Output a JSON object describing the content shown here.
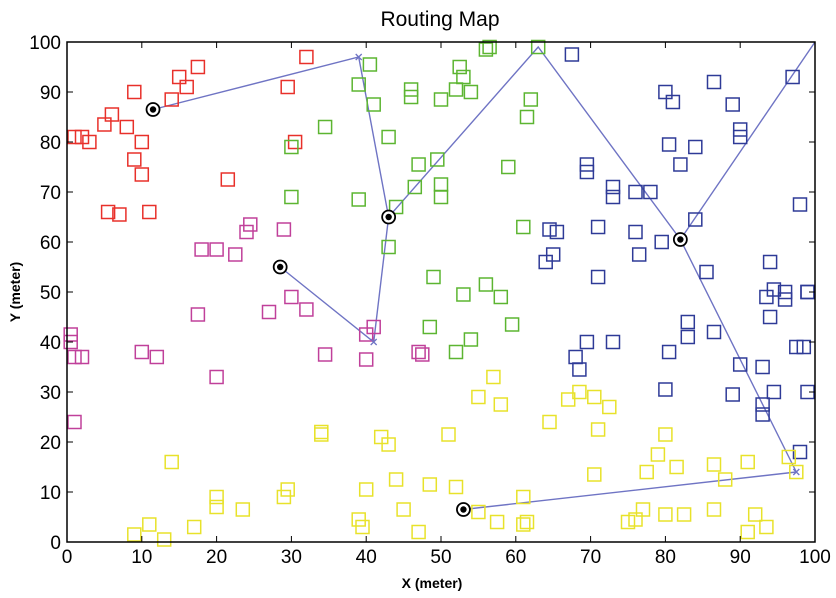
{
  "chart_data": {
    "type": "scatter",
    "title": "Routing Map",
    "xlabel": "X (meter)",
    "ylabel": "Y (meter)",
    "xlim": [
      0,
      100
    ],
    "ylim": [
      0,
      100
    ],
    "grid": false,
    "x_ticks": [
      "0",
      "10",
      "20",
      "30",
      "40",
      "50",
      "60",
      "70",
      "80",
      "90",
      "100"
    ],
    "y_ticks": [
      "0",
      "10",
      "20",
      "30",
      "40",
      "50",
      "60",
      "70",
      "80",
      "90",
      "100"
    ],
    "colors": {
      "red": "#e8302a",
      "green": "#5cb531",
      "blue": "#2e3a97",
      "magenta": "#c0409a",
      "yellow": "#e8e22a",
      "route": "#6f74c4"
    },
    "series": [
      {
        "color_key": "red",
        "points": [
          [
            1,
            81
          ],
          [
            2,
            81
          ],
          [
            3,
            80
          ],
          [
            5,
            83.5
          ],
          [
            6,
            85.5
          ],
          [
            8,
            83
          ],
          [
            9,
            90
          ],
          [
            9,
            76.5
          ],
          [
            10,
            80
          ],
          [
            10,
            73.5
          ],
          [
            14,
            88.5
          ],
          [
            15,
            93
          ],
          [
            16,
            91
          ],
          [
            17.5,
            95
          ],
          [
            5.5,
            66
          ],
          [
            7,
            65.5
          ],
          [
            11,
            66
          ],
          [
            21.5,
            72.5
          ],
          [
            29.5,
            91
          ],
          [
            30.5,
            80
          ],
          [
            32,
            97
          ]
        ]
      },
      {
        "color_key": "green",
        "points": [
          [
            30,
            79
          ],
          [
            30,
            69
          ],
          [
            34.5,
            83
          ],
          [
            39,
            91.5
          ],
          [
            39,
            68.5
          ],
          [
            40.5,
            95.5
          ],
          [
            41,
            87.5
          ],
          [
            43,
            81
          ],
          [
            43,
            59
          ],
          [
            44,
            67
          ],
          [
            46,
            89
          ],
          [
            46,
            90.5
          ],
          [
            47,
            75.5
          ],
          [
            46.5,
            71
          ],
          [
            49.5,
            76.5
          ],
          [
            50,
            71.5
          ],
          [
            50,
            69
          ],
          [
            50,
            88.5
          ],
          [
            52,
            90.5
          ],
          [
            52.5,
            95
          ],
          [
            53,
            93
          ],
          [
            54,
            90
          ],
          [
            56,
            98.5
          ],
          [
            56.5,
            99
          ],
          [
            59,
            75
          ],
          [
            61.5,
            85
          ],
          [
            62,
            88.5
          ],
          [
            61,
            63
          ],
          [
            63,
            99
          ],
          [
            49,
            53
          ],
          [
            48.5,
            43
          ],
          [
            52,
            38
          ],
          [
            53,
            49.5
          ],
          [
            54,
            40.5
          ],
          [
            56,
            51.5
          ],
          [
            58,
            49
          ],
          [
            59.5,
            43.5
          ]
        ]
      },
      {
        "color_key": "blue",
        "points": [
          [
            67.5,
            97.5
          ],
          [
            69.5,
            74
          ],
          [
            69.5,
            75.5
          ],
          [
            73,
            71
          ],
          [
            73,
            69
          ],
          [
            76,
            70
          ],
          [
            78,
            70
          ],
          [
            80,
            90
          ],
          [
            80.5,
            79.5
          ],
          [
            81,
            88
          ],
          [
            82,
            75.5
          ],
          [
            84,
            79
          ],
          [
            84,
            64.5
          ],
          [
            86.5,
            92
          ],
          [
            89,
            87.5
          ],
          [
            90,
            81
          ],
          [
            90,
            82.5
          ],
          [
            97,
            93
          ],
          [
            98,
            67.5
          ],
          [
            64,
            56
          ],
          [
            64.5,
            62.5
          ],
          [
            65.5,
            62
          ],
          [
            65,
            57.5
          ],
          [
            71,
            63
          ],
          [
            71,
            53
          ],
          [
            69.5,
            40
          ],
          [
            68,
            37
          ],
          [
            68.5,
            34.5
          ],
          [
            73,
            40
          ],
          [
            76,
            62
          ],
          [
            76.5,
            57.5
          ],
          [
            79.5,
            60
          ],
          [
            85.5,
            54
          ],
          [
            80,
            30.5
          ],
          [
            80.5,
            38
          ],
          [
            83,
            44
          ],
          [
            83,
            41
          ],
          [
            86.5,
            42
          ],
          [
            89,
            29.5
          ],
          [
            90,
            35.5
          ],
          [
            93,
            35
          ],
          [
            93,
            27.5
          ],
          [
            93,
            25.5
          ],
          [
            94,
            56
          ],
          [
            93.5,
            49
          ],
          [
            94.5,
            50.5
          ],
          [
            94,
            45
          ],
          [
            94.5,
            30
          ],
          [
            96,
            50
          ],
          [
            96,
            48.5
          ],
          [
            97.5,
            39
          ],
          [
            98,
            18
          ],
          [
            98.5,
            39
          ],
          [
            99,
            50
          ],
          [
            99,
            50
          ],
          [
            99,
            30
          ]
        ]
      },
      {
        "color_key": "magenta",
        "points": [
          [
            0.5,
            40
          ],
          [
            0.5,
            41.5
          ],
          [
            1,
            24
          ],
          [
            1,
            37
          ],
          [
            2,
            37
          ],
          [
            10,
            38
          ],
          [
            12,
            37
          ],
          [
            17.5,
            45.5
          ],
          [
            18,
            58.5
          ],
          [
            20,
            58.5
          ],
          [
            20,
            33
          ],
          [
            22.5,
            57.5
          ],
          [
            24,
            62
          ],
          [
            24.5,
            63.5
          ],
          [
            27,
            46
          ],
          [
            29,
            62.5
          ],
          [
            30,
            49
          ],
          [
            32,
            46.5
          ],
          [
            34.5,
            37.5
          ],
          [
            40,
            41.5
          ],
          [
            40,
            36.5
          ],
          [
            41,
            43
          ],
          [
            47,
            38
          ],
          [
            47.5,
            37.5
          ]
        ]
      },
      {
        "color_key": "yellow",
        "points": [
          [
            9,
            1.5
          ],
          [
            11,
            3.5
          ],
          [
            13,
            0.5
          ],
          [
            14,
            16
          ],
          [
            17,
            3
          ],
          [
            20,
            7
          ],
          [
            20,
            9
          ],
          [
            23.5,
            6.5
          ],
          [
            29,
            9
          ],
          [
            29.5,
            10.5
          ],
          [
            34,
            22
          ],
          [
            34,
            21.5
          ],
          [
            39,
            4.5
          ],
          [
            39.5,
            3
          ],
          [
            40,
            10.5
          ],
          [
            42,
            21
          ],
          [
            43,
            19.5
          ],
          [
            44,
            12.5
          ],
          [
            45,
            6.5
          ],
          [
            47,
            2
          ],
          [
            48.5,
            11.5
          ],
          [
            51,
            21.5
          ],
          [
            52,
            11
          ],
          [
            55,
            6
          ],
          [
            55,
            29
          ],
          [
            57,
            33
          ],
          [
            57.5,
            4
          ],
          [
            58,
            27.5
          ],
          [
            61,
            9
          ],
          [
            61,
            3.5
          ],
          [
            61.5,
            4
          ],
          [
            64.5,
            24
          ],
          [
            67,
            28.5
          ],
          [
            68.5,
            30
          ],
          [
            70.5,
            29
          ],
          [
            70.5,
            13.5
          ],
          [
            71,
            22.5
          ],
          [
            72.5,
            27
          ],
          [
            75,
            4
          ],
          [
            76,
            4.5
          ],
          [
            77,
            6.5
          ],
          [
            77.5,
            14
          ],
          [
            79,
            17.5
          ],
          [
            80,
            5.5
          ],
          [
            80,
            21.5
          ],
          [
            81.5,
            15
          ],
          [
            82.5,
            5.5
          ],
          [
            86.5,
            6.5
          ],
          [
            86.5,
            15.5
          ],
          [
            88,
            12.5
          ],
          [
            91,
            2
          ],
          [
            91,
            16
          ],
          [
            92,
            5.5
          ],
          [
            93.5,
            3
          ],
          [
            96.5,
            17
          ],
          [
            97.5,
            14
          ]
        ]
      }
    ],
    "cluster_heads": [
      [
        11.5,
        86.5
      ],
      [
        43,
        65
      ],
      [
        28.5,
        55
      ],
      [
        82,
        60.5
      ],
      [
        53,
        6.5
      ]
    ],
    "routes": [
      {
        "points": [
          [
            11.5,
            86.5
          ],
          [
            39,
            97
          ],
          [
            43,
            65
          ],
          [
            63,
            99
          ],
          [
            82,
            60.5
          ],
          [
            97.5,
            14
          ],
          [
            53,
            6.5
          ]
        ]
      },
      {
        "points": [
          [
            28.5,
            55
          ],
          [
            41,
            40
          ],
          [
            43,
            65
          ]
        ]
      },
      {
        "points": [
          [
            82,
            60.5
          ],
          [
            100,
            100
          ]
        ]
      }
    ],
    "route_markers": [
      [
        39,
        97
      ],
      [
        41,
        40
      ],
      [
        97.5,
        14
      ]
    ]
  }
}
